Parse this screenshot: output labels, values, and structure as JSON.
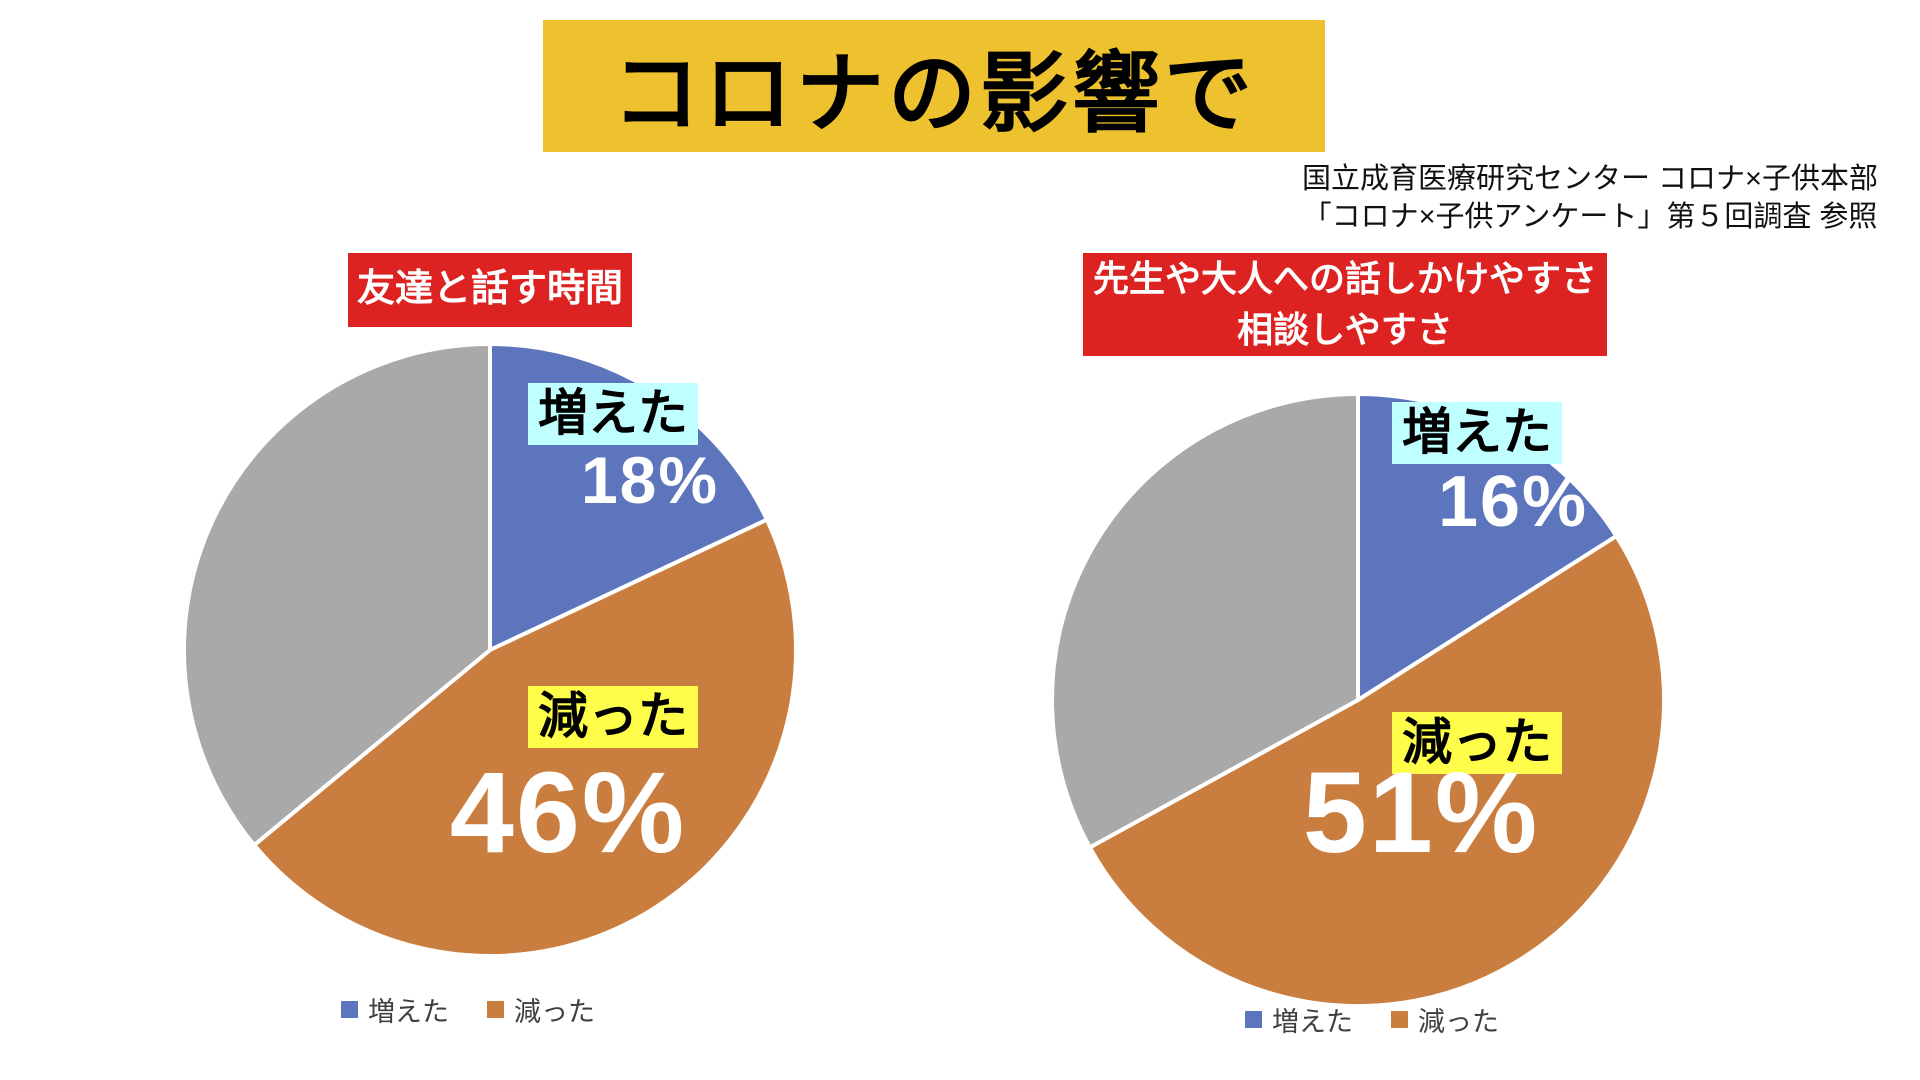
{
  "page": {
    "background": "#ffffff"
  },
  "title": {
    "text": "コロナの影響で",
    "bg": "#eec22f",
    "color": "#000000"
  },
  "source": {
    "line1": "国立成育医療研究センター コロナ×子供本部",
    "line2": "「コロナ×子供アンケート」第５回調査 参照"
  },
  "chart_data": [
    {
      "type": "pie",
      "title_lines": [
        "友達と話す時間"
      ],
      "title_bg": "#dd2222",
      "start_angle_deg": 0,
      "slice_border_color": "#ffffff",
      "slices": [
        {
          "label": "増えた",
          "value": 18,
          "data_label": "18%",
          "color": "#5d75bd",
          "label_highlight": "#c0ffff"
        },
        {
          "label": "減った",
          "value": 46,
          "data_label": "46%",
          "color": "#c97d3f",
          "label_highlight": "#fdfd4a"
        },
        {
          "label": "",
          "value": 36,
          "data_label": "",
          "color": "#a9a9a9",
          "label_highlight": ""
        }
      ],
      "legend_position": "bottom"
    },
    {
      "type": "pie",
      "title_lines": [
        "先生や大人への話しかけやすさ",
        "相談しやすさ"
      ],
      "title_bg": "#dd2222",
      "start_angle_deg": 0,
      "slice_border_color": "#ffffff",
      "slices": [
        {
          "label": "増えた",
          "value": 16,
          "data_label": "16%",
          "color": "#5d75bd",
          "label_highlight": "#c0ffff"
        },
        {
          "label": "減った",
          "value": 51,
          "data_label": "51%",
          "color": "#c97d3f",
          "label_highlight": "#fdfd4a"
        },
        {
          "label": "",
          "value": 33,
          "data_label": "",
          "color": "#a9a9a9",
          "label_highlight": ""
        }
      ],
      "legend_position": "bottom"
    }
  ]
}
